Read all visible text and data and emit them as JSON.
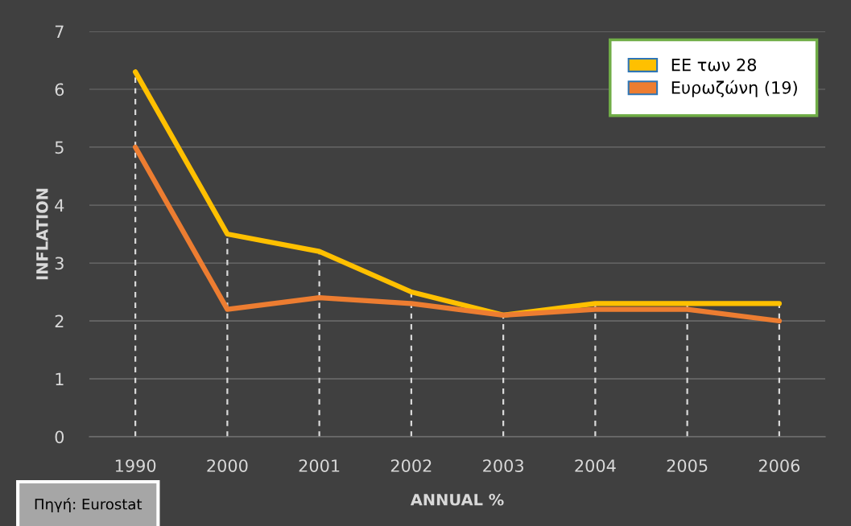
{
  "chart_data": {
    "type": "line",
    "xlabel": "ANNUAL %",
    "ylabel": "INFLATION",
    "categories": [
      "1990",
      "2000",
      "2001",
      "2002",
      "2003",
      "2004",
      "2005",
      "2006"
    ],
    "series": [
      {
        "name": "ΕΕ των 28",
        "color": "#ffc000",
        "values": [
          6.3,
          3.5,
          3.2,
          2.5,
          2.1,
          2.3,
          2.3,
          2.3
        ]
      },
      {
        "name": "Ευρωζώνη (19)",
        "color": "#ed7d31",
        "values": [
          5.0,
          2.2,
          2.4,
          2.3,
          2.1,
          2.2,
          2.2,
          2.0
        ]
      }
    ],
    "ylim": [
      0,
      7
    ],
    "yticks": [
      0,
      1,
      2,
      3,
      4,
      5,
      6,
      7
    ],
    "grid": "y",
    "legend": "top right",
    "line_style": "solid",
    "ref_lines": [
      {
        "axis": "x",
        "value": "1990",
        "color": "#d9d9d9",
        "line_style": "dashed"
      },
      {
        "axis": "x",
        "value": "2000",
        "color": "#d9d9d9",
        "line_style": "dashed"
      },
      {
        "axis": "x",
        "value": "2001",
        "color": "#d9d9d9",
        "line_style": "dashed"
      },
      {
        "axis": "x",
        "value": "2002",
        "color": "#d9d9d9",
        "line_style": "dashed"
      },
      {
        "axis": "x",
        "value": "2003",
        "color": "#d9d9d9",
        "line_style": "dashed"
      },
      {
        "axis": "x",
        "value": "2004",
        "color": "#d9d9d9",
        "line_style": "dashed"
      },
      {
        "axis": "x",
        "value": "2005",
        "color": "#d9d9d9",
        "line_style": "dashed"
      },
      {
        "axis": "x",
        "value": "2006",
        "color": "#d9d9d9",
        "line_style": "dashed"
      }
    ],
    "annotations": [
      "Πηγή: Eurostat"
    ]
  }
}
